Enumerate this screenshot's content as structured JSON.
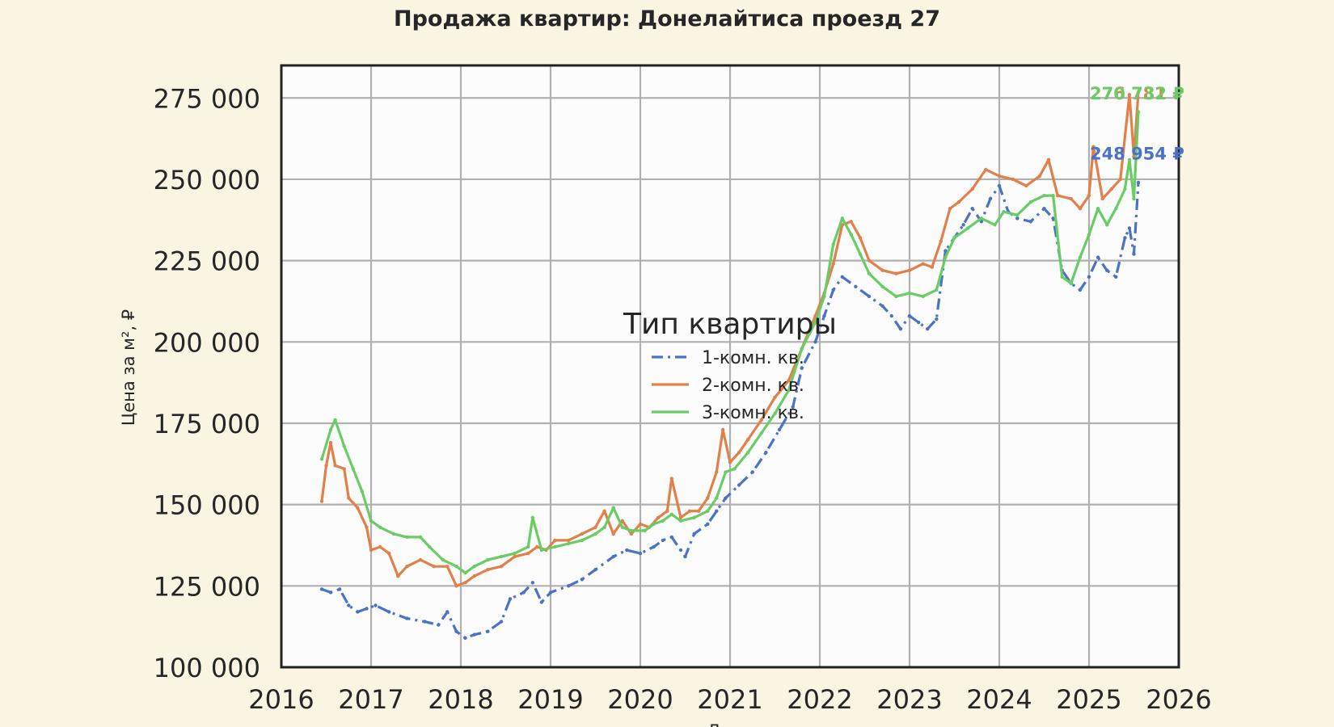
{
  "chart_data": {
    "type": "line",
    "title": "Продажа квартир: Донелайтиса проезд 27",
    "xlabel": "Д",
    "ylabel": "Цена за м², ₽",
    "xlim": [
      2016,
      2026
    ],
    "ylim": [
      100000,
      285000
    ],
    "x_ticks": [
      2016,
      2017,
      2018,
      2019,
      2020,
      2021,
      2022,
      2023,
      2024,
      2025,
      2026
    ],
    "y_ticks": [
      100000,
      125000,
      150000,
      175000,
      200000,
      225000,
      250000,
      275000
    ],
    "y_tick_labels": [
      "100 000",
      "125 000",
      "150 000",
      "175 000",
      "200 000",
      "225 000",
      "250 000",
      "275 000"
    ],
    "grid": true,
    "legend": {
      "title": "Тип квартиры",
      "placement": "center"
    },
    "colors": {
      "background": "#faf4e2",
      "plot_background": "#fcfcfc",
      "grid": "#b0b0b0",
      "frame": "#222222"
    },
    "series": [
      {
        "name": "1-комн. кв.",
        "color": "#4c72c4",
        "style": "dashdot",
        "end_label": "248 954 ₽",
        "points": [
          [
            2016.45,
            124000
          ],
          [
            2016.55,
            123000
          ],
          [
            2016.65,
            124000
          ],
          [
            2016.75,
            119000
          ],
          [
            2016.85,
            117000
          ],
          [
            2016.95,
            118000
          ],
          [
            2017.05,
            119000
          ],
          [
            2017.2,
            117000
          ],
          [
            2017.4,
            115000
          ],
          [
            2017.6,
            114000
          ],
          [
            2017.75,
            113000
          ],
          [
            2017.85,
            117000
          ],
          [
            2017.95,
            111000
          ],
          [
            2018.05,
            109000
          ],
          [
            2018.15,
            110000
          ],
          [
            2018.3,
            111000
          ],
          [
            2018.45,
            114000
          ],
          [
            2018.55,
            121000
          ],
          [
            2018.7,
            123000
          ],
          [
            2018.8,
            126000
          ],
          [
            2018.9,
            120000
          ],
          [
            2019.0,
            123000
          ],
          [
            2019.2,
            125000
          ],
          [
            2019.35,
            127000
          ],
          [
            2019.5,
            130000
          ],
          [
            2019.7,
            134000
          ],
          [
            2019.85,
            136000
          ],
          [
            2020.0,
            135000
          ],
          [
            2020.15,
            137000
          ],
          [
            2020.25,
            139000
          ],
          [
            2020.35,
            140000
          ],
          [
            2020.45,
            136000
          ],
          [
            2020.5,
            134000
          ],
          [
            2020.6,
            141000
          ],
          [
            2020.75,
            144000
          ],
          [
            2020.85,
            148000
          ],
          [
            2020.95,
            152000
          ],
          [
            2021.1,
            156000
          ],
          [
            2021.25,
            160000
          ],
          [
            2021.4,
            166000
          ],
          [
            2021.55,
            173000
          ],
          [
            2021.7,
            180000
          ],
          [
            2021.8,
            192000
          ],
          [
            2021.95,
            200000
          ],
          [
            2022.05,
            208000
          ],
          [
            2022.15,
            216000
          ],
          [
            2022.25,
            220000
          ],
          [
            2022.4,
            217000
          ],
          [
            2022.55,
            214000
          ],
          [
            2022.7,
            211000
          ],
          [
            2022.8,
            208000
          ],
          [
            2022.9,
            204000
          ],
          [
            2023.0,
            208000
          ],
          [
            2023.1,
            206000
          ],
          [
            2023.2,
            204000
          ],
          [
            2023.3,
            207000
          ],
          [
            2023.4,
            228000
          ],
          [
            2023.5,
            232000
          ],
          [
            2023.6,
            236000
          ],
          [
            2023.7,
            241000
          ],
          [
            2023.8,
            237000
          ],
          [
            2023.9,
            244000
          ],
          [
            2024.0,
            248000
          ],
          [
            2024.1,
            240000
          ],
          [
            2024.2,
            238000
          ],
          [
            2024.35,
            237000
          ],
          [
            2024.5,
            241000
          ],
          [
            2024.6,
            238000
          ],
          [
            2024.7,
            222000
          ],
          [
            2024.8,
            218000
          ],
          [
            2024.9,
            216000
          ],
          [
            2025.0,
            220000
          ],
          [
            2025.1,
            226000
          ],
          [
            2025.2,
            222000
          ],
          [
            2025.3,
            220000
          ],
          [
            2025.4,
            232000
          ],
          [
            2025.45,
            235000
          ],
          [
            2025.5,
            227000
          ],
          [
            2025.55,
            249000
          ]
        ]
      },
      {
        "name": "2-комн. кв.",
        "color": "#e1804a",
        "style": "solid",
        "end_label": "276 781 ₽",
        "points": [
          [
            2016.45,
            151000
          ],
          [
            2016.5,
            162000
          ],
          [
            2016.55,
            169000
          ],
          [
            2016.6,
            162000
          ],
          [
            2016.7,
            161000
          ],
          [
            2016.75,
            152000
          ],
          [
            2016.85,
            149000
          ],
          [
            2016.95,
            143000
          ],
          [
            2017.0,
            136000
          ],
          [
            2017.1,
            137000
          ],
          [
            2017.2,
            135000
          ],
          [
            2017.3,
            128000
          ],
          [
            2017.4,
            131000
          ],
          [
            2017.55,
            133000
          ],
          [
            2017.7,
            131000
          ],
          [
            2017.85,
            131000
          ],
          [
            2017.95,
            125000
          ],
          [
            2018.05,
            126000
          ],
          [
            2018.15,
            128000
          ],
          [
            2018.3,
            130000
          ],
          [
            2018.45,
            131000
          ],
          [
            2018.6,
            134000
          ],
          [
            2018.75,
            135000
          ],
          [
            2018.85,
            137000
          ],
          [
            2018.95,
            136000
          ],
          [
            2019.05,
            139000
          ],
          [
            2019.2,
            139000
          ],
          [
            2019.35,
            141000
          ],
          [
            2019.5,
            143000
          ],
          [
            2019.6,
            148000
          ],
          [
            2019.7,
            141000
          ],
          [
            2019.8,
            145000
          ],
          [
            2019.9,
            141000
          ],
          [
            2020.0,
            144000
          ],
          [
            2020.1,
            143000
          ],
          [
            2020.2,
            146000
          ],
          [
            2020.3,
            148000
          ],
          [
            2020.35,
            158000
          ],
          [
            2020.45,
            146000
          ],
          [
            2020.55,
            148000
          ],
          [
            2020.65,
            148000
          ],
          [
            2020.75,
            152000
          ],
          [
            2020.85,
            160000
          ],
          [
            2020.92,
            173000
          ],
          [
            2021.0,
            163000
          ],
          [
            2021.1,
            166000
          ],
          [
            2021.2,
            170000
          ],
          [
            2021.35,
            176000
          ],
          [
            2021.5,
            183000
          ],
          [
            2021.65,
            188000
          ],
          [
            2021.8,
            198000
          ],
          [
            2021.95,
            208000
          ],
          [
            2022.05,
            215000
          ],
          [
            2022.15,
            224000
          ],
          [
            2022.25,
            236000
          ],
          [
            2022.35,
            237000
          ],
          [
            2022.45,
            232000
          ],
          [
            2022.55,
            225000
          ],
          [
            2022.7,
            222000
          ],
          [
            2022.85,
            221000
          ],
          [
            2023.0,
            222000
          ],
          [
            2023.15,
            224000
          ],
          [
            2023.25,
            223000
          ],
          [
            2023.35,
            231000
          ],
          [
            2023.45,
            241000
          ],
          [
            2023.55,
            243000
          ],
          [
            2023.7,
            247000
          ],
          [
            2023.85,
            253000
          ],
          [
            2024.0,
            251000
          ],
          [
            2024.15,
            250000
          ],
          [
            2024.3,
            248000
          ],
          [
            2024.45,
            251000
          ],
          [
            2024.55,
            256000
          ],
          [
            2024.65,
            245000
          ],
          [
            2024.8,
            244000
          ],
          [
            2024.9,
            241000
          ],
          [
            2025.0,
            245000
          ],
          [
            2025.05,
            260000
          ],
          [
            2025.15,
            244000
          ],
          [
            2025.25,
            247000
          ],
          [
            2025.35,
            250000
          ],
          [
            2025.45,
            276000
          ],
          [
            2025.5,
            257000
          ],
          [
            2025.55,
            276781
          ]
        ]
      },
      {
        "name": "3-комн. кв.",
        "color": "#6acc65",
        "style": "solid",
        "end_label": "270 732 ₽",
        "points": [
          [
            2016.45,
            164000
          ],
          [
            2016.55,
            173000
          ],
          [
            2016.6,
            176000
          ],
          [
            2016.7,
            168000
          ],
          [
            2016.8,
            161000
          ],
          [
            2016.9,
            154000
          ],
          [
            2017.0,
            145000
          ],
          [
            2017.1,
            143000
          ],
          [
            2017.25,
            141000
          ],
          [
            2017.4,
            140000
          ],
          [
            2017.55,
            140000
          ],
          [
            2017.65,
            137000
          ],
          [
            2017.8,
            133000
          ],
          [
            2017.95,
            131000
          ],
          [
            2018.05,
            129000
          ],
          [
            2018.15,
            131000
          ],
          [
            2018.3,
            133000
          ],
          [
            2018.45,
            134000
          ],
          [
            2018.6,
            135000
          ],
          [
            2018.75,
            137000
          ],
          [
            2018.8,
            146000
          ],
          [
            2018.9,
            136000
          ],
          [
            2019.05,
            137000
          ],
          [
            2019.2,
            138000
          ],
          [
            2019.35,
            139000
          ],
          [
            2019.5,
            141000
          ],
          [
            2019.6,
            143000
          ],
          [
            2019.7,
            149000
          ],
          [
            2019.8,
            143000
          ],
          [
            2019.9,
            142000
          ],
          [
            2020.05,
            142000
          ],
          [
            2020.15,
            144000
          ],
          [
            2020.25,
            145000
          ],
          [
            2020.35,
            147000
          ],
          [
            2020.45,
            145000
          ],
          [
            2020.6,
            146000
          ],
          [
            2020.75,
            148000
          ],
          [
            2020.85,
            152000
          ],
          [
            2020.95,
            160000
          ],
          [
            2021.05,
            161000
          ],
          [
            2021.2,
            166000
          ],
          [
            2021.35,
            172000
          ],
          [
            2021.5,
            178000
          ],
          [
            2021.65,
            185000
          ],
          [
            2021.8,
            198000
          ],
          [
            2021.95,
            206000
          ],
          [
            2022.05,
            214000
          ],
          [
            2022.15,
            230000
          ],
          [
            2022.25,
            238000
          ],
          [
            2022.35,
            233000
          ],
          [
            2022.45,
            227000
          ],
          [
            2022.55,
            221000
          ],
          [
            2022.7,
            217000
          ],
          [
            2022.85,
            214000
          ],
          [
            2023.0,
            215000
          ],
          [
            2023.15,
            214000
          ],
          [
            2023.3,
            216000
          ],
          [
            2023.4,
            226000
          ],
          [
            2023.5,
            232000
          ],
          [
            2023.65,
            235000
          ],
          [
            2023.8,
            238000
          ],
          [
            2023.95,
            236000
          ],
          [
            2024.05,
            240000
          ],
          [
            2024.2,
            239000
          ],
          [
            2024.35,
            243000
          ],
          [
            2024.5,
            245000
          ],
          [
            2024.6,
            245000
          ],
          [
            2024.7,
            220000
          ],
          [
            2024.8,
            218000
          ],
          [
            2024.9,
            226000
          ],
          [
            2025.0,
            233000
          ],
          [
            2025.1,
            241000
          ],
          [
            2025.2,
            236000
          ],
          [
            2025.3,
            241000
          ],
          [
            2025.4,
            247000
          ],
          [
            2025.45,
            256000
          ],
          [
            2025.5,
            244000
          ],
          [
            2025.55,
            270732
          ]
        ]
      }
    ]
  }
}
